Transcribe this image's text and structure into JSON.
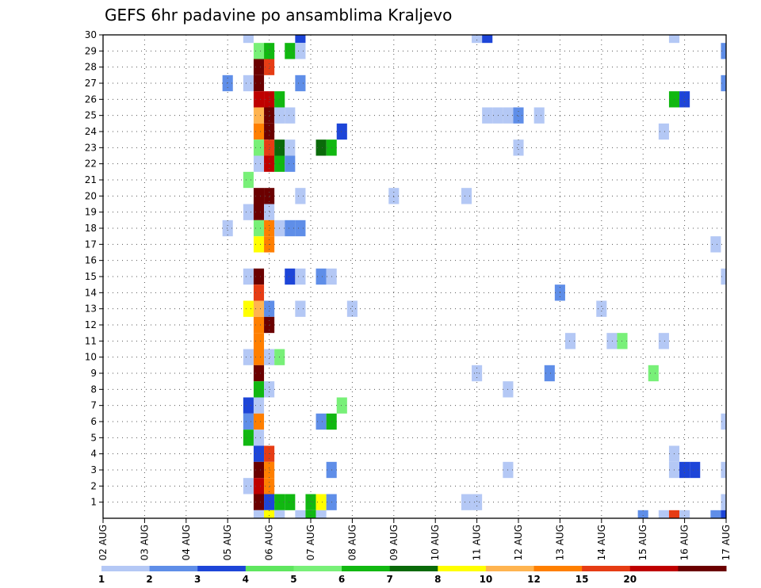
{
  "chart_data": {
    "type": "heatmap",
    "title": "GEFS 6hr padavine po ansamblima Kraljevo",
    "xlabel": "",
    "ylabel": "",
    "x_tick_labels": [
      "02 AUG",
      "03 AUG",
      "04 AUG",
      "05 AUG",
      "06 AUG",
      "07 AUG",
      "08 AUG",
      "09 AUG",
      "10 AUG",
      "11 AUG",
      "12 AUG",
      "13 AUG",
      "14 AUG",
      "15 AUG",
      "16 AUG",
      "17 AUG"
    ],
    "y_tick_labels": [
      "1",
      "2",
      "3",
      "4",
      "5",
      "6",
      "7",
      "8",
      "9",
      "10",
      "11",
      "12",
      "13",
      "14",
      "15",
      "16",
      "17",
      "18",
      "19",
      "20",
      "21",
      "22",
      "23",
      "24",
      "25",
      "26",
      "27",
      "28",
      "29",
      "30"
    ],
    "x_range": [
      0,
      60
    ],
    "y_range": [
      0,
      30
    ],
    "grid": true,
    "colorbar": {
      "levels": [
        "1",
        "2",
        "3",
        "4",
        "5",
        "6",
        "7",
        "8",
        "10",
        "12",
        "15",
        "20"
      ],
      "colors": [
        "#b4c8f5",
        "#5f8ee8",
        "#1d45d8",
        "#5fe65f",
        "#78f078",
        "#11b811",
        "#0a6a0a",
        "#ffff00",
        "#ffb450",
        "#ff7f00",
        "#e63c14",
        "#bf0000",
        "#6b0000"
      ],
      "legend_position": "bottom"
    },
    "cells": [
      {
        "x": 14,
        "y": 30,
        "c": 0
      },
      {
        "x": 19,
        "y": 30,
        "c": 2
      },
      {
        "x": 36,
        "y": 30,
        "c": 0
      },
      {
        "x": 37,
        "y": 30,
        "c": 2
      },
      {
        "x": 55,
        "y": 30,
        "c": 0
      },
      {
        "x": 15,
        "y": 29,
        "c": 4
      },
      {
        "x": 16,
        "y": 29,
        "c": 5
      },
      {
        "x": 18,
        "y": 29,
        "c": 5
      },
      {
        "x": 19,
        "y": 29,
        "c": 0
      },
      {
        "x": 60,
        "y": 29,
        "c": 1
      },
      {
        "x": 15,
        "y": 28,
        "c": 12
      },
      {
        "x": 16,
        "y": 28,
        "c": 10
      },
      {
        "x": 12,
        "y": 27,
        "c": 1
      },
      {
        "x": 14,
        "y": 27,
        "c": 0
      },
      {
        "x": 15,
        "y": 27,
        "c": 12
      },
      {
        "x": 19,
        "y": 27,
        "c": 1
      },
      {
        "x": 60,
        "y": 27,
        "c": 1
      },
      {
        "x": 15,
        "y": 26,
        "c": 11
      },
      {
        "x": 16,
        "y": 26,
        "c": 11
      },
      {
        "x": 17,
        "y": 26,
        "c": 5
      },
      {
        "x": 55,
        "y": 26,
        "c": 5
      },
      {
        "x": 56,
        "y": 26,
        "c": 2
      },
      {
        "x": 15,
        "y": 25,
        "c": 8
      },
      {
        "x": 16,
        "y": 25,
        "c": 12
      },
      {
        "x": 17,
        "y": 25,
        "c": 0
      },
      {
        "x": 18,
        "y": 25,
        "c": 0
      },
      {
        "x": 37,
        "y": 25,
        "c": 0
      },
      {
        "x": 38,
        "y": 25,
        "c": 0
      },
      {
        "x": 39,
        "y": 25,
        "c": 0
      },
      {
        "x": 40,
        "y": 25,
        "c": 1
      },
      {
        "x": 42,
        "y": 25,
        "c": 0
      },
      {
        "x": 15,
        "y": 24,
        "c": 9
      },
      {
        "x": 16,
        "y": 24,
        "c": 12
      },
      {
        "x": 23,
        "y": 24,
        "c": 2
      },
      {
        "x": 54,
        "y": 24,
        "c": 0
      },
      {
        "x": 15,
        "y": 23,
        "c": 4
      },
      {
        "x": 16,
        "y": 23,
        "c": 10
      },
      {
        "x": 17,
        "y": 23,
        "c": 6
      },
      {
        "x": 18,
        "y": 23,
        "c": 0
      },
      {
        "x": 21,
        "y": 23,
        "c": 6
      },
      {
        "x": 22,
        "y": 23,
        "c": 5
      },
      {
        "x": 40,
        "y": 23,
        "c": 0
      },
      {
        "x": 15,
        "y": 22,
        "c": 0
      },
      {
        "x": 16,
        "y": 22,
        "c": 11
      },
      {
        "x": 17,
        "y": 22,
        "c": 5
      },
      {
        "x": 18,
        "y": 22,
        "c": 1
      },
      {
        "x": 14,
        "y": 21,
        "c": 4
      },
      {
        "x": 15,
        "y": 20,
        "c": 12
      },
      {
        "x": 16,
        "y": 20,
        "c": 12
      },
      {
        "x": 19,
        "y": 20,
        "c": 0
      },
      {
        "x": 28,
        "y": 20,
        "c": 0
      },
      {
        "x": 35,
        "y": 20,
        "c": 0
      },
      {
        "x": 14,
        "y": 19,
        "c": 0
      },
      {
        "x": 15,
        "y": 19,
        "c": 12
      },
      {
        "x": 16,
        "y": 19,
        "c": 0
      },
      {
        "x": 12,
        "y": 18,
        "c": 0
      },
      {
        "x": 15,
        "y": 18,
        "c": 4
      },
      {
        "x": 16,
        "y": 18,
        "c": 9
      },
      {
        "x": 17,
        "y": 18,
        "c": 0
      },
      {
        "x": 18,
        "y": 18,
        "c": 1
      },
      {
        "x": 19,
        "y": 18,
        "c": 1
      },
      {
        "x": 15,
        "y": 17,
        "c": 7
      },
      {
        "x": 16,
        "y": 17,
        "c": 9
      },
      {
        "x": 59,
        "y": 17,
        "c": 0
      },
      {
        "x": 14,
        "y": 15,
        "c": 0
      },
      {
        "x": 15,
        "y": 15,
        "c": 12
      },
      {
        "x": 18,
        "y": 15,
        "c": 2
      },
      {
        "x": 19,
        "y": 15,
        "c": 0
      },
      {
        "x": 21,
        "y": 15,
        "c": 1
      },
      {
        "x": 22,
        "y": 15,
        "c": 0
      },
      {
        "x": 60,
        "y": 15,
        "c": 0
      },
      {
        "x": 15,
        "y": 14,
        "c": 10
      },
      {
        "x": 44,
        "y": 14,
        "c": 1
      },
      {
        "x": 14,
        "y": 13,
        "c": 7
      },
      {
        "x": 15,
        "y": 13,
        "c": 8
      },
      {
        "x": 16,
        "y": 13,
        "c": 1
      },
      {
        "x": 19,
        "y": 13,
        "c": 0
      },
      {
        "x": 24,
        "y": 13,
        "c": 0
      },
      {
        "x": 48,
        "y": 13,
        "c": 0
      },
      {
        "x": 15,
        "y": 12,
        "c": 9
      },
      {
        "x": 16,
        "y": 12,
        "c": 12
      },
      {
        "x": 15,
        "y": 11,
        "c": 9
      },
      {
        "x": 45,
        "y": 11,
        "c": 0
      },
      {
        "x": 49,
        "y": 11,
        "c": 0
      },
      {
        "x": 50,
        "y": 11,
        "c": 4
      },
      {
        "x": 54,
        "y": 11,
        "c": 0
      },
      {
        "x": 14,
        "y": 10,
        "c": 0
      },
      {
        "x": 15,
        "y": 10,
        "c": 9
      },
      {
        "x": 16,
        "y": 10,
        "c": 0
      },
      {
        "x": 17,
        "y": 10,
        "c": 4
      },
      {
        "x": 15,
        "y": 9,
        "c": 12
      },
      {
        "x": 36,
        "y": 9,
        "c": 0
      },
      {
        "x": 43,
        "y": 9,
        "c": 1
      },
      {
        "x": 53,
        "y": 9,
        "c": 4
      },
      {
        "x": 15,
        "y": 8,
        "c": 5
      },
      {
        "x": 16,
        "y": 8,
        "c": 0
      },
      {
        "x": 39,
        "y": 8,
        "c": 0
      },
      {
        "x": 14,
        "y": 7,
        "c": 2
      },
      {
        "x": 15,
        "y": 7,
        "c": 0
      },
      {
        "x": 23,
        "y": 7,
        "c": 4
      },
      {
        "x": 14,
        "y": 6,
        "c": 1
      },
      {
        "x": 15,
        "y": 6,
        "c": 9
      },
      {
        "x": 21,
        "y": 6,
        "c": 1
      },
      {
        "x": 22,
        "y": 6,
        "c": 5
      },
      {
        "x": 60,
        "y": 6,
        "c": 0
      },
      {
        "x": 14,
        "y": 5,
        "c": 5
      },
      {
        "x": 15,
        "y": 5,
        "c": 0
      },
      {
        "x": 15,
        "y": 4,
        "c": 2
      },
      {
        "x": 16,
        "y": 4,
        "c": 10
      },
      {
        "x": 55,
        "y": 4,
        "c": 0
      },
      {
        "x": 15,
        "y": 3,
        "c": 12
      },
      {
        "x": 16,
        "y": 3,
        "c": 9
      },
      {
        "x": 22,
        "y": 3,
        "c": 1
      },
      {
        "x": 39,
        "y": 3,
        "c": 0
      },
      {
        "x": 55,
        "y": 3,
        "c": 0
      },
      {
        "x": 56,
        "y": 3,
        "c": 2
      },
      {
        "x": 57,
        "y": 3,
        "c": 2
      },
      {
        "x": 60,
        "y": 3,
        "c": 0
      },
      {
        "x": 14,
        "y": 2,
        "c": 0
      },
      {
        "x": 15,
        "y": 2,
        "c": 11
      },
      {
        "x": 16,
        "y": 2,
        "c": 9
      },
      {
        "x": 15,
        "y": 1,
        "c": 12
      },
      {
        "x": 16,
        "y": 1,
        "c": 2
      },
      {
        "x": 17,
        "y": 1,
        "c": 5
      },
      {
        "x": 18,
        "y": 1,
        "c": 5
      },
      {
        "x": 20,
        "y": 1,
        "c": 5
      },
      {
        "x": 21,
        "y": 1,
        "c": 7
      },
      {
        "x": 22,
        "y": 1,
        "c": 1
      },
      {
        "x": 35,
        "y": 1,
        "c": 0
      },
      {
        "x": 36,
        "y": 1,
        "c": 0
      },
      {
        "x": 60,
        "y": 1,
        "c": 0
      },
      {
        "x": 15,
        "y": 0,
        "c": 0
      },
      {
        "x": 16,
        "y": 0,
        "c": 7
      },
      {
        "x": 17,
        "y": 0,
        "c": 0
      },
      {
        "x": 19,
        "y": 0,
        "c": 0
      },
      {
        "x": 20,
        "y": 0,
        "c": 5
      },
      {
        "x": 21,
        "y": 0,
        "c": 0
      },
      {
        "x": 52,
        "y": 0,
        "c": 1
      },
      {
        "x": 54,
        "y": 0,
        "c": 0
      },
      {
        "x": 55,
        "y": 0,
        "c": 10
      },
      {
        "x": 56,
        "y": 0,
        "c": 0
      },
      {
        "x": 59,
        "y": 0,
        "c": 1
      },
      {
        "x": 60,
        "y": 0,
        "c": 2
      }
    ]
  }
}
